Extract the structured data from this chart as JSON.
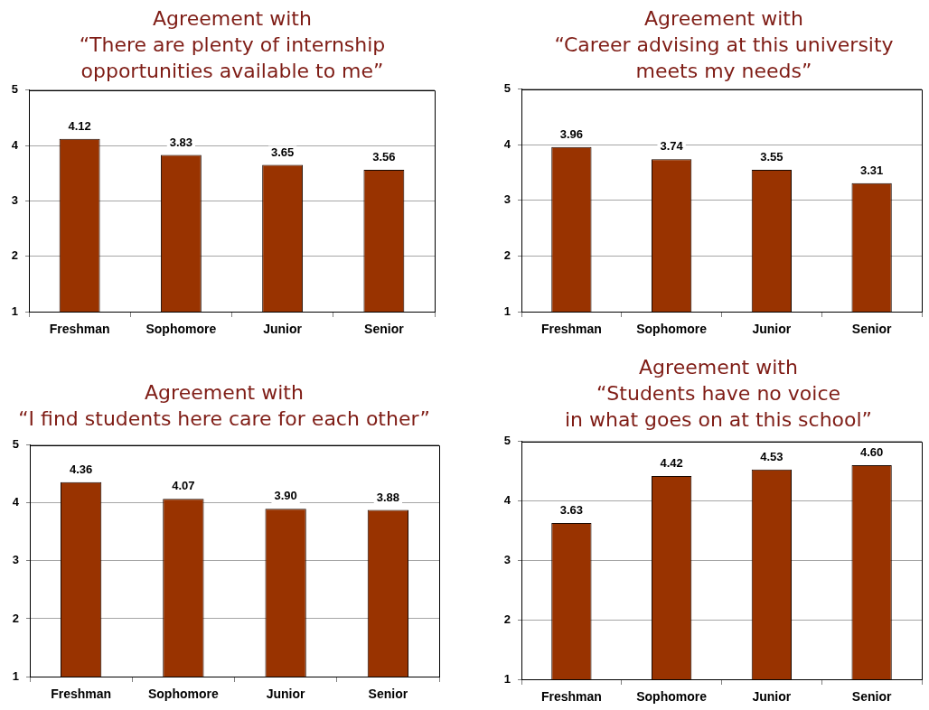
{
  "chart_data": [
    {
      "type": "bar",
      "title": "Agreement with\n“There are plenty of internship\nopportunities available to me”",
      "categories": [
        "Freshman",
        "Sophomore",
        "Junior",
        "Senior"
      ],
      "values": [
        4.12,
        3.83,
        3.65,
        3.56
      ],
      "value_labels": [
        "4.12",
        "3.83",
        "3.65",
        "3.56"
      ],
      "color": "#993300",
      "ylim": [
        1,
        5
      ],
      "yticks": [
        1,
        2,
        3,
        4,
        5
      ],
      "grid": "y"
    },
    {
      "type": "bar",
      "title": "Agreement with\n“Career advising at this university\nmeets my needs”",
      "categories": [
        "Freshman",
        "Sophomore",
        "Junior",
        "Senior"
      ],
      "values": [
        3.96,
        3.74,
        3.55,
        3.31
      ],
      "value_labels": [
        "3.96",
        "3.74",
        "3.55",
        "3.31"
      ],
      "color": "#993300",
      "ylim": [
        1,
        5
      ],
      "yticks": [
        1,
        2,
        3,
        4,
        5
      ],
      "grid": "y"
    },
    {
      "type": "bar",
      "title": "Agreement with\n“I find students here care for each other”",
      "categories": [
        "Freshman",
        "Sophomore",
        "Junior",
        "Senior"
      ],
      "values": [
        4.36,
        4.07,
        3.9,
        3.88
      ],
      "value_labels": [
        "4.36",
        "4.07",
        "3.90",
        "3.88"
      ],
      "color": "#993300",
      "ylim": [
        1,
        5
      ],
      "yticks": [
        1,
        2,
        3,
        4,
        5
      ],
      "grid": "y"
    },
    {
      "type": "bar",
      "title": "Agreement with\n“Students have no voice\nin what goes on at this school”",
      "categories": [
        "Freshman",
        "Sophomore",
        "Junior",
        "Senior"
      ],
      "values": [
        3.63,
        4.42,
        4.53,
        4.6
      ],
      "value_labels": [
        "3.63",
        "4.42",
        "4.53",
        "4.60"
      ],
      "color": "#993300",
      "ylim": [
        1,
        5
      ],
      "yticks": [
        1,
        2,
        3,
        4,
        5
      ],
      "grid": "y"
    }
  ]
}
